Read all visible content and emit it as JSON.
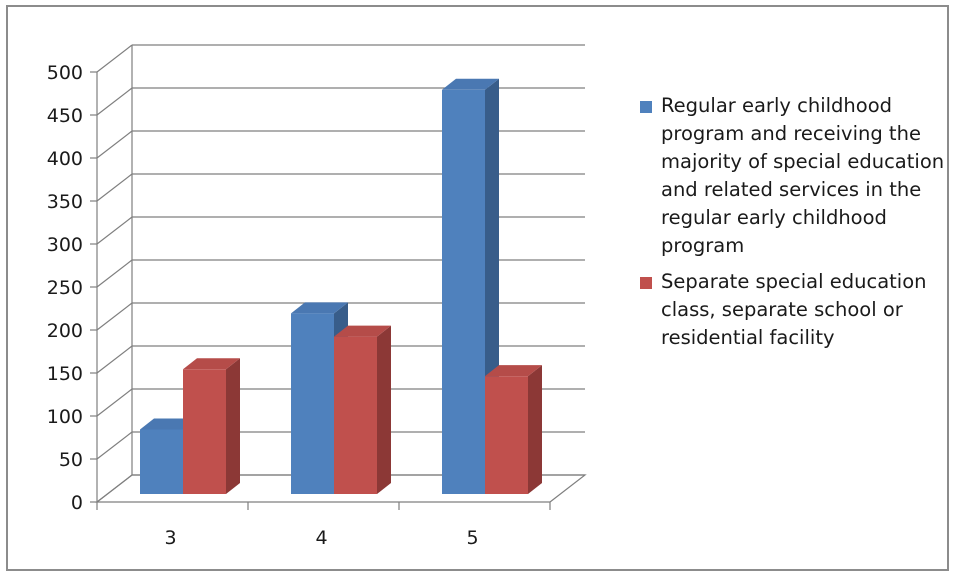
{
  "chart_data": {
    "type": "bar",
    "title": "",
    "xlabel": "",
    "ylabel": "",
    "categories": [
      "3",
      "4",
      "5"
    ],
    "series": [
      {
        "name": "Regular early childhood program and receiving the majority of special education and related services in the regular early childhood program",
        "values": [
          75,
          210,
          470
        ],
        "color": "#4f81bd",
        "side_color": "#385d8a",
        "top_color": "#4a78b2"
      },
      {
        "name": "Separate special education class, separate school or residential facility",
        "values": [
          145,
          183,
          137
        ],
        "color": "#c0504d",
        "side_color": "#8c3836",
        "top_color": "#b54c49"
      }
    ],
    "ylim": [
      0,
      500
    ],
    "yticks": [
      "0",
      "50",
      "100",
      "150",
      "200",
      "250",
      "300",
      "350",
      "400",
      "450",
      "500"
    ],
    "grid": true,
    "legend_position": "right",
    "style": "3d-clustered-column"
  }
}
